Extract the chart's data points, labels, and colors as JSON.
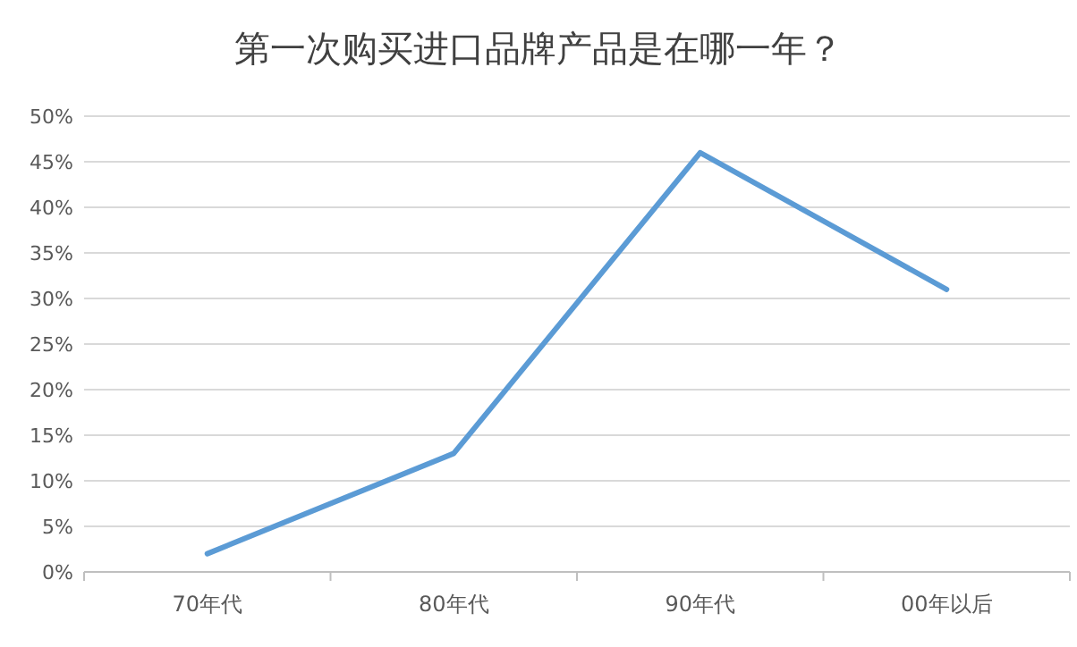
{
  "chart_data": {
    "type": "line",
    "title": "第一次购买进口品牌产品是在哪一年？",
    "categories": [
      "70年代",
      "80年代",
      "90年代",
      "00年以后"
    ],
    "series": [
      {
        "color": "#5b9bd5",
        "values": [
          2,
          13,
          46,
          31
        ]
      }
    ],
    "ylim": [
      0,
      50
    ],
    "yticks": [
      {
        "value": 0,
        "label": "0%"
      },
      {
        "value": 5,
        "label": "5%"
      },
      {
        "value": 10,
        "label": "10%"
      },
      {
        "value": 15,
        "label": "15%"
      },
      {
        "value": 20,
        "label": "20%"
      },
      {
        "value": 25,
        "label": "25%"
      },
      {
        "value": 30,
        "label": "30%"
      },
      {
        "value": 35,
        "label": "35%"
      },
      {
        "value": 40,
        "label": "40%"
      },
      {
        "value": 45,
        "label": "45%"
      },
      {
        "value": 50,
        "label": "50%"
      }
    ],
    "grid": "y",
    "marker": "none",
    "line_style": "solid"
  }
}
